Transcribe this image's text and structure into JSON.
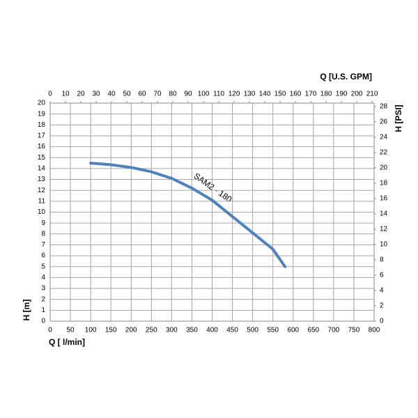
{
  "chart_data": {
    "type": "line",
    "x_label": "Q [ l/min]",
    "y_label": "H [m]",
    "x2_label": "Q  [U.S. GPM]",
    "y2_label": "H [PSI]",
    "annotation": "SAM2 - 180",
    "xlim": [
      0,
      800
    ],
    "xticks": [
      0,
      50,
      100,
      150,
      200,
      250,
      300,
      350,
      400,
      450,
      500,
      550,
      600,
      650,
      700,
      750,
      800
    ],
    "ylim": [
      0,
      20
    ],
    "yticks": [
      0,
      1,
      2,
      3,
      4,
      5,
      6,
      7,
      8,
      9,
      10,
      11,
      12,
      13,
      14,
      15,
      16,
      17,
      18,
      19,
      20
    ],
    "x2lim": [
      0,
      211.3
    ],
    "x2ticks": [
      0,
      10,
      20,
      30,
      40,
      50,
      60,
      70,
      80,
      90,
      100,
      110,
      120,
      130,
      140,
      150,
      160,
      170,
      180,
      190,
      200,
      210
    ],
    "y2lim": [
      0,
      28.45
    ],
    "y2ticks": [
      0,
      2,
      4,
      6,
      8,
      10,
      12,
      14,
      16,
      18,
      20,
      22,
      24,
      26,
      28
    ],
    "grid": true,
    "x": [
      100,
      150,
      200,
      250,
      300,
      350,
      400,
      450,
      500,
      550,
      580
    ],
    "series": [
      {
        "name": "SAM2 - 180",
        "color": "#4f81bd",
        "values": [
          14.5,
          14.35,
          14.1,
          13.7,
          13.1,
          12.2,
          11.1,
          9.6,
          8.1,
          6.6,
          5.0
        ]
      }
    ]
  }
}
